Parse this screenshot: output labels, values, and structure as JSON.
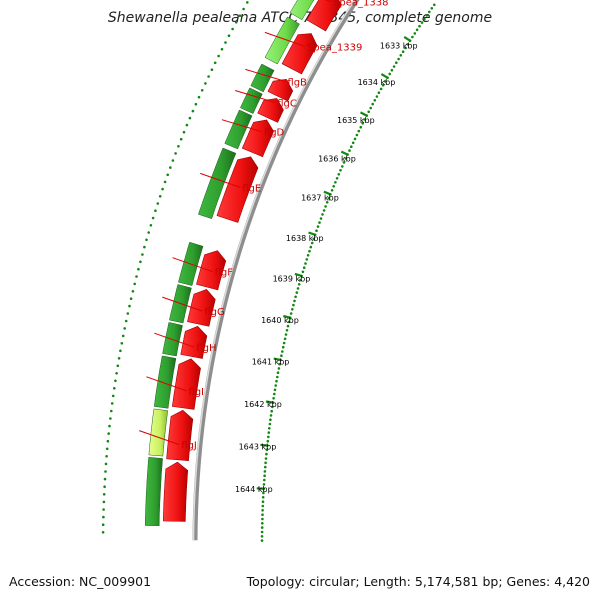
{
  "title": "Shewanella pealeana ATCC 700345, complete genome",
  "footer": {
    "accession": "Accession: NC_009901",
    "summary": "Topology: circular; Length: 5,174,581 bp; Genes: 4,420"
  },
  "colors": {
    "reverse_strand": "#ee1111",
    "forward_strand": "#2e9e2e",
    "forward_highlight": "#6edc4a",
    "forward_pale": "#c8f060",
    "blue_feature": "#1a1acc",
    "label": "#cc0000",
    "tick": "#118811",
    "backbone": "#9a9a9a"
  },
  "ruler": {
    "ticks": [
      {
        "pos": 1633,
        "label": "1633 kbp"
      },
      {
        "pos": 1634,
        "label": "1634 kbp"
      },
      {
        "pos": 1635,
        "label": "1635 kbp"
      },
      {
        "pos": 1636,
        "label": "1636 kbp"
      },
      {
        "pos": 1637,
        "label": "1637 kbp"
      },
      {
        "pos": 1638,
        "label": "1638 kbp"
      },
      {
        "pos": 1639,
        "label": "1639 kbp"
      },
      {
        "pos": 1640,
        "label": "1640 kbp"
      },
      {
        "pos": 1641,
        "label": "1641 kbp"
      },
      {
        "pos": 1642,
        "label": "1642 kbp"
      },
      {
        "pos": 1643,
        "label": "1643 kbp"
      },
      {
        "pos": 1644,
        "label": "1644 kbp"
      }
    ]
  },
  "genes": [
    {
      "label": "Spea_1338",
      "start": 1633.0,
      "end": 1633.8
    },
    {
      "label": "Spea_1339",
      "start": 1634.0,
      "end": 1634.9
    },
    {
      "label": "flgB",
      "start": 1635.1,
      "end": 1635.5
    },
    {
      "label": "flgC",
      "start": 1635.55,
      "end": 1636.0
    },
    {
      "label": "flgD",
      "start": 1636.05,
      "end": 1636.8
    },
    {
      "label": "flgE",
      "start": 1636.9,
      "end": 1638.3
    },
    {
      "label": "flgF",
      "start": 1639.0,
      "end": 1639.8
    },
    {
      "label": "flgG",
      "start": 1639.85,
      "end": 1640.6
    },
    {
      "label": "flgH",
      "start": 1640.65,
      "end": 1641.3
    },
    {
      "label": "flgI",
      "start": 1641.35,
      "end": 1642.4
    },
    {
      "label": "flgJ",
      "start": 1642.45,
      "end": 1643.5
    }
  ],
  "reverse_blocks": [
    {
      "start": 1633.0,
      "end": 1633.8
    },
    {
      "start": 1634.0,
      "end": 1634.85
    },
    {
      "start": 1635.1,
      "end": 1635.5
    },
    {
      "start": 1635.55,
      "end": 1636.0
    },
    {
      "start": 1636.05,
      "end": 1636.8
    },
    {
      "start": 1636.9,
      "end": 1638.3
    },
    {
      "start": 1639.0,
      "end": 1639.8
    },
    {
      "start": 1639.85,
      "end": 1640.6
    },
    {
      "start": 1640.65,
      "end": 1641.3
    },
    {
      "start": 1641.35,
      "end": 1642.4
    },
    {
      "start": 1642.45,
      "end": 1643.5
    },
    {
      "start": 1643.55,
      "end": 1644.8
    }
  ],
  "forward_blocks": [
    {
      "start": 1632.3,
      "end": 1632.55,
      "color": "blue"
    },
    {
      "start": 1632.6,
      "end": 1632.9,
      "color": "green"
    },
    {
      "start": 1633.0,
      "end": 1633.85,
      "color": "highlight"
    },
    {
      "start": 1633.95,
      "end": 1634.9,
      "color": "highlight"
    },
    {
      "start": 1635.05,
      "end": 1635.55,
      "color": "green"
    },
    {
      "start": 1635.6,
      "end": 1636.05,
      "color": "green"
    },
    {
      "start": 1636.1,
      "end": 1636.85,
      "color": "green"
    },
    {
      "start": 1636.95,
      "end": 1638.4,
      "color": "green"
    },
    {
      "start": 1639.0,
      "end": 1639.85,
      "color": "green"
    },
    {
      "start": 1639.9,
      "end": 1640.65,
      "color": "green"
    },
    {
      "start": 1640.7,
      "end": 1641.35,
      "color": "green"
    },
    {
      "start": 1641.4,
      "end": 1642.45,
      "color": "green"
    },
    {
      "start": 1642.5,
      "end": 1643.45,
      "color": "pale"
    },
    {
      "start": 1643.5,
      "end": 1644.9,
      "color": "green"
    }
  ]
}
